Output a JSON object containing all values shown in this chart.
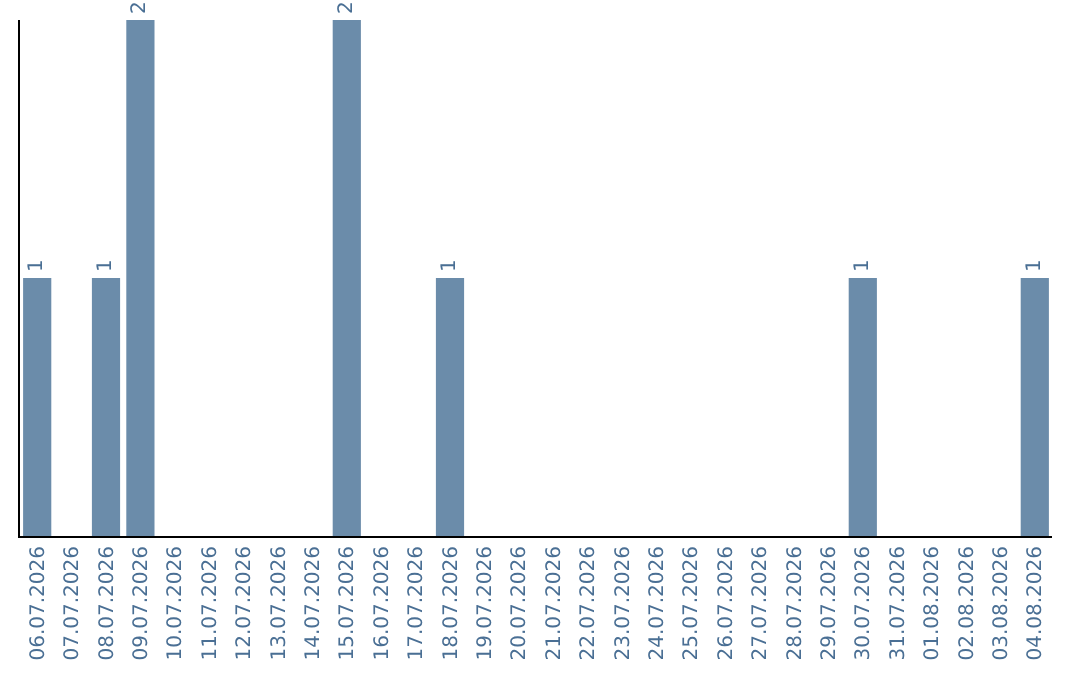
{
  "chart_data": {
    "type": "bar",
    "categories": [
      "06.07.2026",
      "07.07.2026",
      "08.07.2026",
      "09.07.2026",
      "10.07.2026",
      "11.07.2026",
      "12.07.2026",
      "13.07.2026",
      "14.07.2026",
      "15.07.2026",
      "16.07.2026",
      "17.07.2026",
      "18.07.2026",
      "19.07.2026",
      "20.07.2026",
      "21.07.2026",
      "22.07.2026",
      "23.07.2026",
      "24.07.2026",
      "25.07.2026",
      "26.07.2026",
      "27.07.2026",
      "28.07.2026",
      "29.07.2026",
      "30.07.2026",
      "31.07.2026",
      "01.08.2026",
      "02.08.2026",
      "03.08.2026",
      "04.08.2026"
    ],
    "values": [
      1,
      0,
      1,
      2,
      0,
      0,
      0,
      0,
      0,
      2,
      0,
      0,
      1,
      0,
      0,
      0,
      0,
      0,
      0,
      0,
      0,
      0,
      0,
      0,
      1,
      0,
      0,
      0,
      0,
      1
    ],
    "value_labels": [
      "1",
      null,
      "1",
      "2",
      null,
      null,
      null,
      null,
      null,
      "2",
      null,
      null,
      "1",
      null,
      null,
      null,
      null,
      null,
      null,
      null,
      null,
      null,
      null,
      null,
      "1",
      null,
      null,
      null,
      null,
      "1"
    ],
    "color": "#6b8caa"
  }
}
